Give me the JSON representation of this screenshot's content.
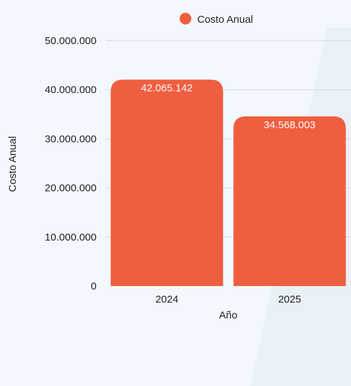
{
  "chart_data": {
    "type": "bar",
    "categories": [
      "2024",
      "2025"
    ],
    "series": [
      {
        "name": "Costo Anual",
        "values": [
          42065142,
          34568003
        ],
        "labels": [
          "42.065.142",
          "34.568.003"
        ]
      }
    ],
    "xlabel": "Año",
    "ylabel": "Costo Anual",
    "ylim": [
      0,
      50000000
    ],
    "yticks": [
      0,
      10000000,
      20000000,
      30000000,
      40000000,
      50000000
    ],
    "ytick_labels": [
      "0",
      "10.000.000",
      "20.000.000",
      "30.000.000",
      "40.000.000",
      "50.000.000"
    ],
    "legend": {
      "position": "top",
      "label": "Costo Anual"
    },
    "colors": {
      "bar": "#f05e40",
      "grid": "#d3d9df"
    },
    "grid": true
  }
}
